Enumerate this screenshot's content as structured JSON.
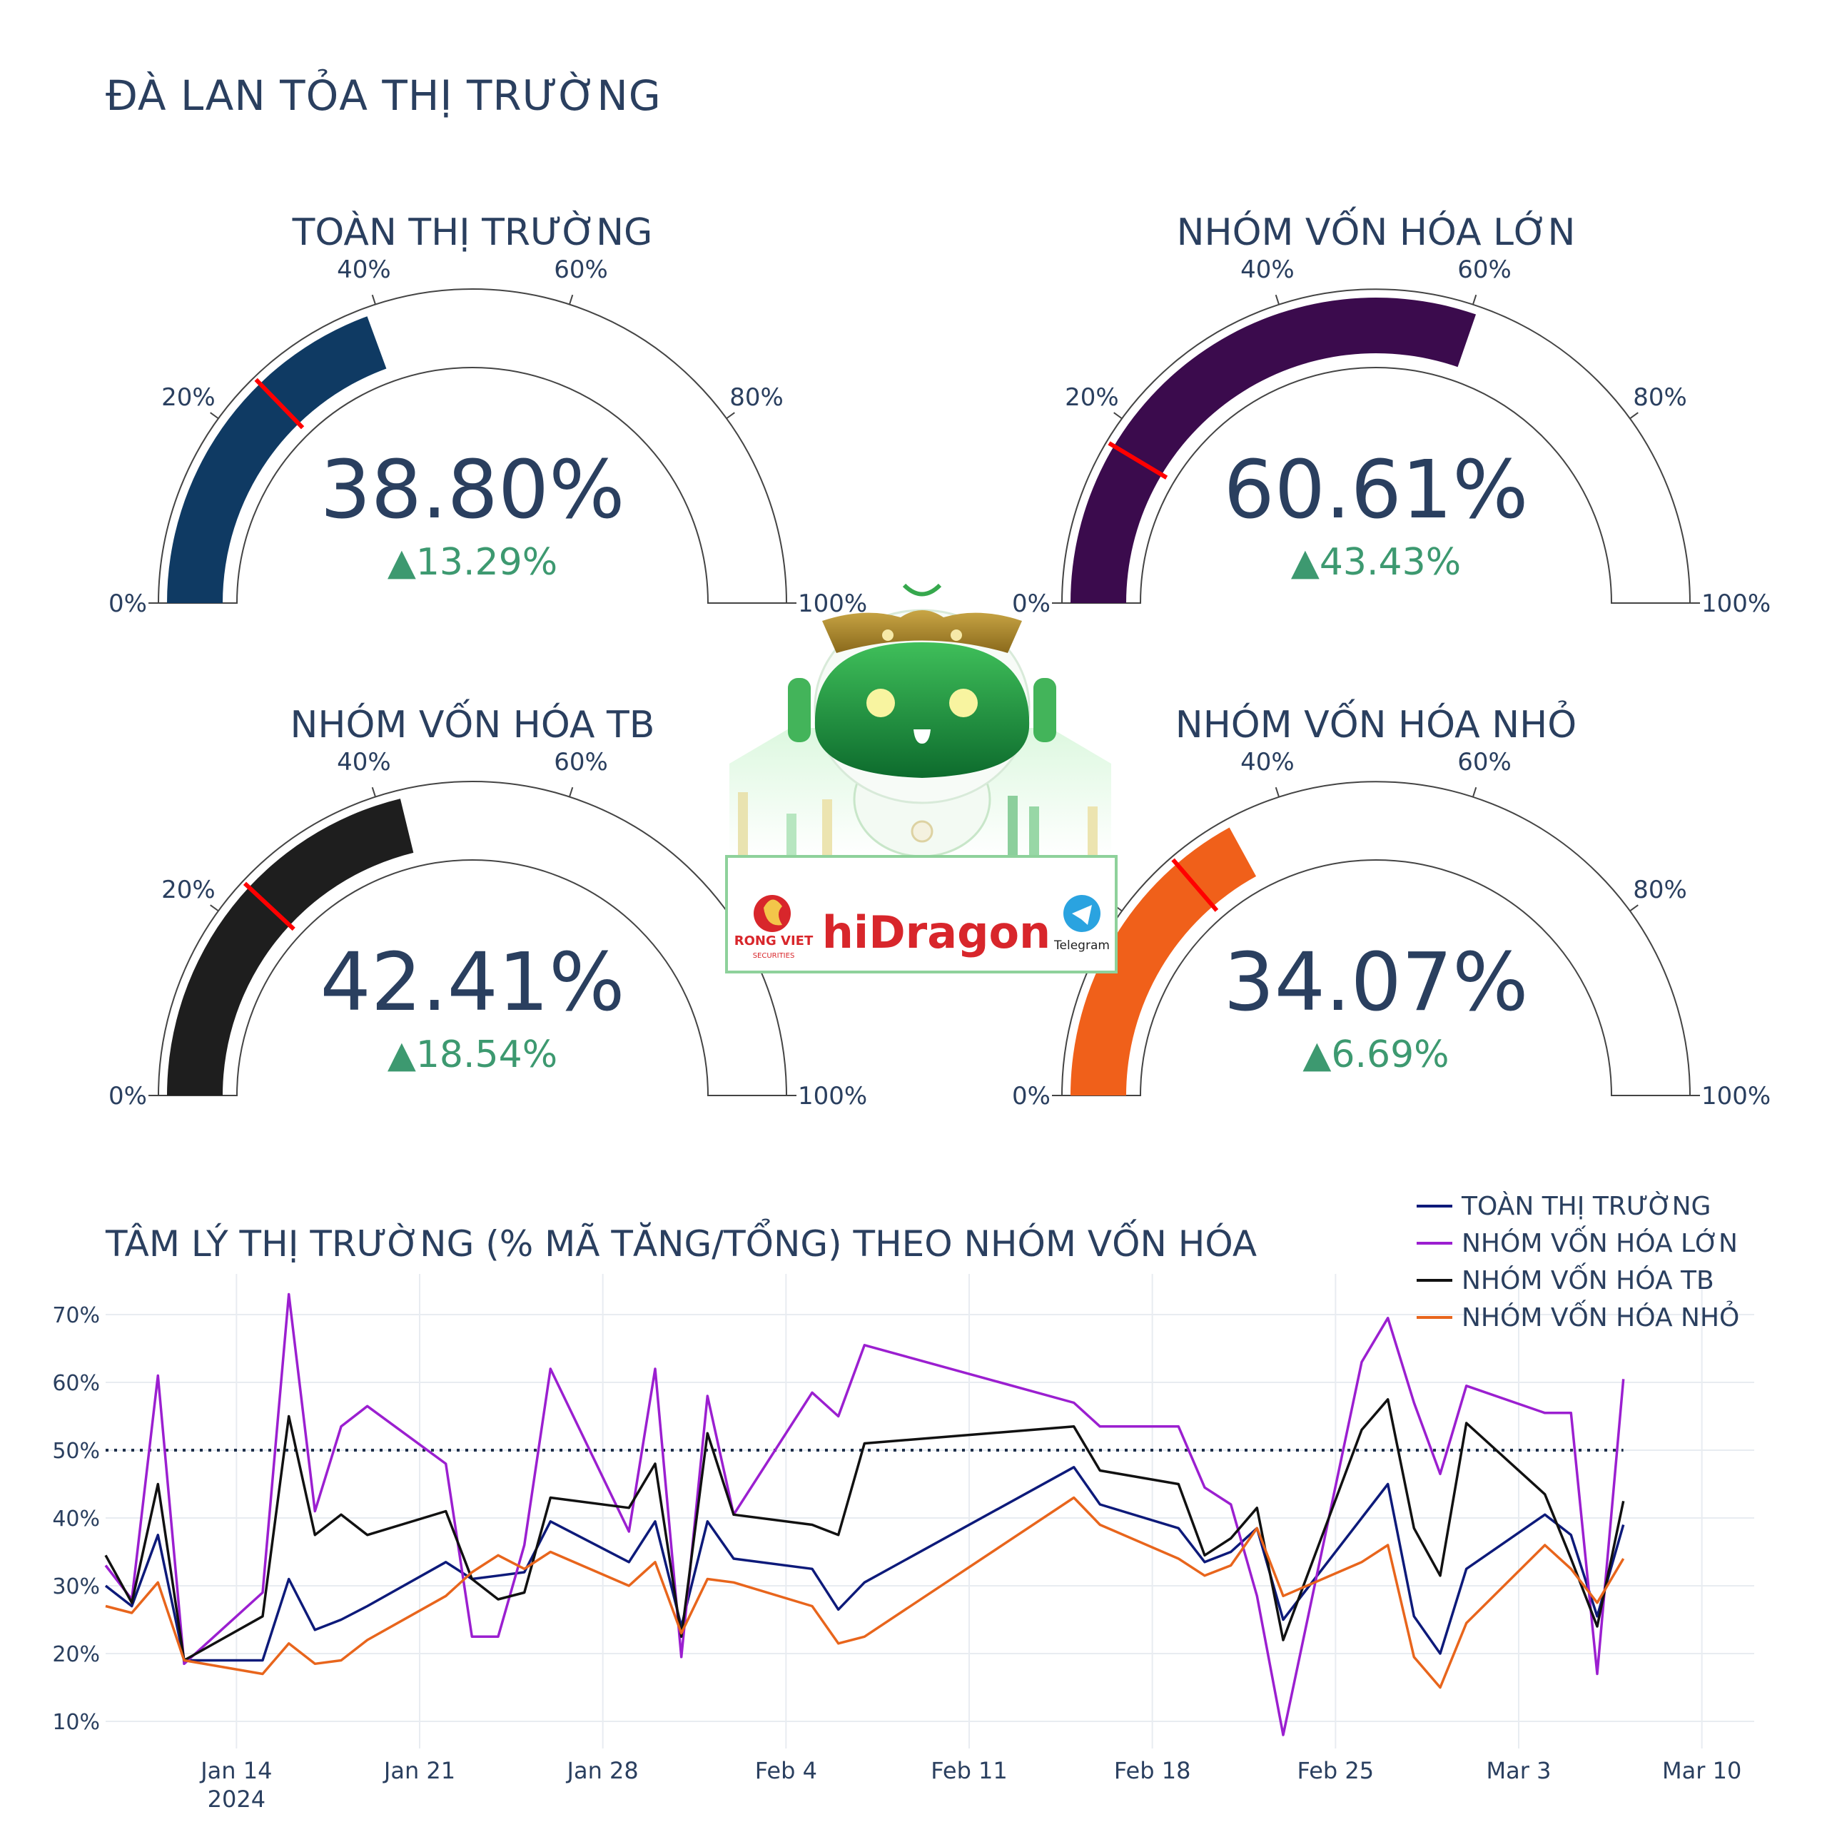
{
  "page_title": "ĐÀ LAN TỎA THỊ TRƯỜNG",
  "chart_data": [
    {
      "type": "gauge",
      "title": "TOÀN THỊ TRƯỜNG",
      "value": 38.8,
      "value_text": "38.80%",
      "delta_text": "▲13.29%",
      "reference": 25.51,
      "bar_color": "#0f3a63",
      "tick_labels": [
        "0%",
        "20%",
        "40%",
        "60%",
        "80%",
        "100%"
      ]
    },
    {
      "type": "gauge",
      "title": "NHÓM VỐN HÓA LỚN",
      "value": 60.61,
      "value_text": "60.61%",
      "delta_text": "▲43.43%",
      "reference": 17.18,
      "bar_color": "#3b0b4d",
      "tick_labels": [
        "0%",
        "20%",
        "40%",
        "60%",
        "80%",
        "100%"
      ]
    },
    {
      "type": "gauge",
      "title": "NHÓM VỐN HÓA TB",
      "value": 42.41,
      "value_text": "42.41%",
      "delta_text": "▲18.54%",
      "reference": 23.87,
      "bar_color": "#1e1e1e",
      "tick_labels": [
        "0%",
        "20%",
        "40%",
        "60%",
        "80%",
        "100%"
      ]
    },
    {
      "type": "gauge",
      "title": "NHÓM VỐN HÓA NHỎ",
      "value": 34.07,
      "value_text": "34.07%",
      "delta_text": "▲6.69%",
      "reference": 27.38,
      "bar_color": "#f0601a",
      "tick_labels": [
        "0%",
        "20%",
        "40%",
        "60%",
        "80%",
        "100%"
      ]
    },
    {
      "type": "line",
      "title": "TÂM LÝ THỊ TRƯỜNG (% MÃ TĂNG/TỔNG) THEO NHÓM VỐN HÓA",
      "xlim": [
        "2024-01-09",
        "2024-03-12"
      ],
      "ylim": [
        6,
        76
      ],
      "y_ticks": [
        10,
        20,
        30,
        40,
        50,
        60,
        70
      ],
      "y_tick_labels": [
        "10%",
        "20%",
        "30%",
        "40%",
        "50%",
        "60%",
        "70%"
      ],
      "x_ticks": [
        "2024-01-14",
        "2024-01-21",
        "2024-01-28",
        "2024-02-04",
        "2024-02-11",
        "2024-02-18",
        "2024-02-25",
        "2024-03-03",
        "2024-03-10"
      ],
      "x_tick_labels": [
        "Jan 14",
        "Jan 21",
        "Jan 28",
        "Feb 4",
        "Feb 11",
        "Feb 18",
        "Feb 25",
        "Mar 3",
        "Mar 10"
      ],
      "x_year_label": "2024",
      "reference_line": 50,
      "grid": true,
      "legend_position": "top-right",
      "x": [
        "2024-01-09",
        "2024-01-10",
        "2024-01-11",
        "2024-01-12",
        "2024-01-15",
        "2024-01-16",
        "2024-01-17",
        "2024-01-18",
        "2024-01-19",
        "2024-01-22",
        "2024-01-23",
        "2024-01-24",
        "2024-01-25",
        "2024-01-26",
        "2024-01-29",
        "2024-01-30",
        "2024-01-31",
        "2024-02-01",
        "2024-02-02",
        "2024-02-05",
        "2024-02-06",
        "2024-02-07",
        "2024-02-15",
        "2024-02-16",
        "2024-02-19",
        "2024-02-20",
        "2024-02-21",
        "2024-02-22",
        "2024-02-23",
        "2024-02-26",
        "2024-02-27",
        "2024-02-28",
        "2024-02-29",
        "2024-03-01",
        "2024-03-04",
        "2024-03-05",
        "2024-03-06",
        "2024-03-07"
      ],
      "series": [
        {
          "name": "TOÀN THỊ TRƯỜNG",
          "color": "#0d1a7a",
          "values": [
            30,
            27,
            37.5,
            19,
            19,
            31,
            23.5,
            25,
            27,
            33.5,
            31,
            31.5,
            32,
            39.5,
            33.5,
            39.5,
            24,
            39.5,
            34,
            32.5,
            26.5,
            30.5,
            47.5,
            42,
            38.5,
            33.5,
            35,
            38.5,
            25,
            40,
            45,
            25.5,
            20,
            32.5,
            40.5,
            37.5,
            25.5,
            39
          ]
        },
        {
          "name": "NHÓM VỐN HÓA LỚN",
          "color": "#9b1fd0",
          "values": [
            33,
            28,
            61,
            18.5,
            29,
            73,
            41,
            53.5,
            56.5,
            48,
            22.5,
            22.5,
            36,
            62,
            38,
            62,
            19.5,
            58,
            40.5,
            58.5,
            55,
            65.5,
            57,
            53.5,
            53.5,
            44.5,
            42,
            28.5,
            8,
            63,
            69.5,
            57,
            46.5,
            59.5,
            55.5,
            55.5,
            17,
            60.5
          ]
        },
        {
          "name": "NHÓM VỐN HÓA TB",
          "color": "#111111",
          "values": [
            34.5,
            27.5,
            45,
            19,
            25.5,
            55,
            37.5,
            40.5,
            37.5,
            41,
            31,
            28,
            29,
            43,
            41.5,
            48,
            22.5,
            52.5,
            40.5,
            39,
            37.5,
            51,
            53.5,
            47,
            45,
            34.5,
            37,
            41.5,
            22,
            53,
            57.5,
            38.5,
            31.5,
            54,
            43.5,
            34,
            24,
            42.5
          ]
        },
        {
          "name": "NHÓM VỐN HÓA NHỎ",
          "color": "#e8651c",
          "values": [
            27,
            26,
            30.5,
            19,
            17,
            21.5,
            18.5,
            19,
            22,
            28.5,
            32,
            34.5,
            32.5,
            35,
            30,
            33.5,
            23,
            31,
            30.5,
            27,
            21.5,
            22.5,
            43,
            39,
            34,
            31.5,
            33,
            38.5,
            28.5,
            33.5,
            36,
            19.5,
            15,
            24.5,
            36,
            32.5,
            27.5,
            34
          ]
        }
      ]
    }
  ],
  "logo": {
    "brand": "hiDragon",
    "company": "RONG VIET",
    "company_sub": "SECURITIES",
    "messenger": "Telegram"
  }
}
